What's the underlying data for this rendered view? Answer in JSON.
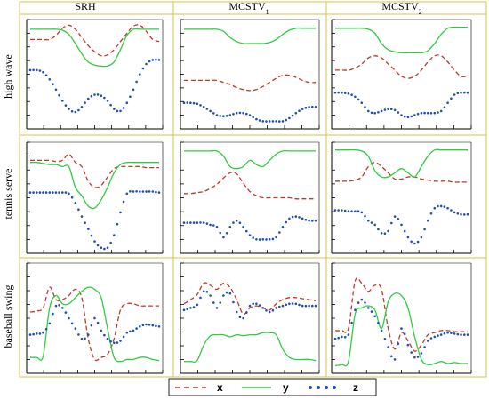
{
  "colors": {
    "grid_border": "#d9c34a",
    "axis": "#000000",
    "x": "#c0392b",
    "y": "#2ecc40",
    "z": "#1f4fb5"
  },
  "column_titles": [
    {
      "main": "SRH",
      "sub": ""
    },
    {
      "main": "MCSTV",
      "sub": "1"
    },
    {
      "main": "MCSTV",
      "sub": "2"
    }
  ],
  "row_titles": [
    "high wave",
    "tennis serve",
    "baseball swing"
  ],
  "legend": [
    {
      "label": "x",
      "style": "dashed",
      "color_key": "x"
    },
    {
      "label": "y",
      "style": "solid",
      "color_key": "y"
    },
    {
      "label": "z",
      "style": "dotted",
      "color_key": "z"
    }
  ],
  "chart_data": [
    {
      "type": "line",
      "row": "high wave",
      "column": "SRH",
      "ylim": [
        0,
        1
      ],
      "series": [
        {
          "name": "x",
          "values": [
            0.84,
            0.84,
            0.84,
            0.84,
            0.88,
            0.95,
            0.98,
            0.94,
            0.86,
            0.78,
            0.72,
            0.68,
            0.69,
            0.74,
            0.82,
            0.9,
            0.97,
            0.98,
            0.92,
            0.84,
            0.82
          ]
        },
        {
          "name": "y",
          "values": [
            0.94,
            0.94,
            0.94,
            0.94,
            0.94,
            0.93,
            0.89,
            0.8,
            0.7,
            0.62,
            0.59,
            0.58,
            0.58,
            0.62,
            0.74,
            0.88,
            0.94,
            0.94,
            0.94,
            0.94,
            0.94
          ]
        },
        {
          "name": "z",
          "values": [
            0.54,
            0.54,
            0.52,
            0.45,
            0.35,
            0.24,
            0.16,
            0.13,
            0.18,
            0.26,
            0.3,
            0.29,
            0.24,
            0.16,
            0.14,
            0.22,
            0.35,
            0.5,
            0.6,
            0.64,
            0.64
          ]
        }
      ]
    },
    {
      "type": "line",
      "row": "high wave",
      "column": "MCSTV1",
      "ylim": [
        0,
        1
      ],
      "series": [
        {
          "name": "x",
          "values": [
            0.44,
            0.44,
            0.44,
            0.44,
            0.44,
            0.44,
            0.42,
            0.4,
            0.37,
            0.35,
            0.34,
            0.35,
            0.38,
            0.42,
            0.46,
            0.49,
            0.49,
            0.47,
            0.44,
            0.42,
            0.42
          ]
        },
        {
          "name": "y",
          "values": [
            0.94,
            0.94,
            0.94,
            0.94,
            0.94,
            0.94,
            0.92,
            0.86,
            0.82,
            0.8,
            0.8,
            0.8,
            0.8,
            0.81,
            0.84,
            0.89,
            0.93,
            0.95,
            0.95,
            0.95,
            0.95
          ]
        },
        {
          "name": "z",
          "values": [
            0.22,
            0.22,
            0.21,
            0.18,
            0.14,
            0.1,
            0.09,
            0.1,
            0.12,
            0.12,
            0.1,
            0.06,
            0.04,
            0.04,
            0.04,
            0.04,
            0.07,
            0.12,
            0.16,
            0.18,
            0.18
          ]
        }
      ]
    },
    {
      "type": "line",
      "row": "high wave",
      "column": "MCSTV2",
      "ylim": [
        0,
        1
      ],
      "series": [
        {
          "name": "x",
          "values": [
            0.54,
            0.54,
            0.54,
            0.56,
            0.6,
            0.66,
            0.68,
            0.66,
            0.6,
            0.54,
            0.48,
            0.46,
            0.48,
            0.54,
            0.62,
            0.68,
            0.68,
            0.62,
            0.54,
            0.48,
            0.48
          ]
        },
        {
          "name": "y",
          "values": [
            0.95,
            0.95,
            0.95,
            0.95,
            0.95,
            0.94,
            0.9,
            0.8,
            0.74,
            0.72,
            0.71,
            0.71,
            0.71,
            0.71,
            0.73,
            0.8,
            0.89,
            0.95,
            0.96,
            0.96,
            0.96
          ]
        },
        {
          "name": "z",
          "values": [
            0.32,
            0.32,
            0.31,
            0.28,
            0.22,
            0.14,
            0.12,
            0.14,
            0.16,
            0.15,
            0.1,
            0.08,
            0.1,
            0.12,
            0.12,
            0.12,
            0.14,
            0.22,
            0.3,
            0.32,
            0.32
          ]
        }
      ]
    },
    {
      "type": "line",
      "row": "tennis serve",
      "column": "SRH",
      "ylim": [
        0,
        1
      ],
      "series": [
        {
          "name": "x",
          "values": [
            0.86,
            0.86,
            0.86,
            0.86,
            0.85,
            0.86,
            0.92,
            0.84,
            0.8,
            0.66,
            0.6,
            0.62,
            0.7,
            0.78,
            0.8,
            0.8,
            0.8,
            0.8,
            0.79,
            0.79,
            0.79
          ]
        },
        {
          "name": "y",
          "values": [
            0.84,
            0.84,
            0.83,
            0.82,
            0.82,
            0.8,
            0.8,
            0.6,
            0.52,
            0.42,
            0.4,
            0.48,
            0.6,
            0.74,
            0.82,
            0.84,
            0.84,
            0.84,
            0.84,
            0.84,
            0.84
          ]
        },
        {
          "name": "z",
          "values": [
            0.55,
            0.55,
            0.55,
            0.55,
            0.55,
            0.55,
            0.54,
            0.45,
            0.32,
            0.2,
            0.08,
            0.02,
            0.02,
            0.14,
            0.36,
            0.54,
            0.56,
            0.56,
            0.56,
            0.56,
            0.55
          ]
        }
      ]
    },
    {
      "type": "line",
      "row": "tennis serve",
      "column": "MCSTV1",
      "ylim": [
        0,
        1
      ],
      "series": [
        {
          "name": "x",
          "values": [
            0.54,
            0.54,
            0.55,
            0.56,
            0.59,
            0.63,
            0.69,
            0.74,
            0.73,
            0.64,
            0.56,
            0.52,
            0.5,
            0.5,
            0.5,
            0.5,
            0.5,
            0.49,
            0.49,
            0.49,
            0.49
          ]
        },
        {
          "name": "y",
          "values": [
            0.95,
            0.95,
            0.95,
            0.95,
            0.95,
            0.95,
            0.9,
            0.8,
            0.78,
            0.8,
            0.86,
            0.82,
            0.8,
            0.86,
            0.92,
            0.95,
            0.95,
            0.95,
            0.95,
            0.95,
            0.95
          ]
        },
        {
          "name": "z",
          "values": [
            0.26,
            0.26,
            0.26,
            0.26,
            0.24,
            0.22,
            0.12,
            0.22,
            0.28,
            0.22,
            0.14,
            0.1,
            0.1,
            0.1,
            0.12,
            0.22,
            0.3,
            0.32,
            0.3,
            0.28,
            0.28
          ]
        }
      ]
    },
    {
      "type": "line",
      "row": "tennis serve",
      "column": "MCSTV2",
      "ylim": [
        0,
        1
      ],
      "series": [
        {
          "name": "x",
          "values": [
            0.66,
            0.66,
            0.66,
            0.67,
            0.7,
            0.8,
            0.84,
            0.8,
            0.74,
            0.68,
            0.68,
            0.7,
            0.7,
            0.68,
            0.67,
            0.66,
            0.66,
            0.66,
            0.65,
            0.65,
            0.65
          ]
        },
        {
          "name": "y",
          "values": [
            0.96,
            0.96,
            0.96,
            0.96,
            0.95,
            0.9,
            0.76,
            0.7,
            0.7,
            0.74,
            0.78,
            0.74,
            0.7,
            0.8,
            0.9,
            0.96,
            0.96,
            0.96,
            0.96,
            0.96,
            0.96
          ]
        },
        {
          "name": "z",
          "values": [
            0.38,
            0.38,
            0.37,
            0.37,
            0.36,
            0.28,
            0.24,
            0.16,
            0.18,
            0.32,
            0.24,
            0.12,
            0.06,
            0.12,
            0.28,
            0.4,
            0.42,
            0.4,
            0.36,
            0.34,
            0.34
          ]
        }
      ]
    },
    {
      "type": "line",
      "row": "baseball swing",
      "column": "SRH",
      "ylim": [
        0,
        1
      ],
      "series": [
        {
          "name": "x",
          "values": [
            0.56,
            0.57,
            0.6,
            0.8,
            0.68,
            0.68,
            0.72,
            0.78,
            0.7,
            0.3,
            0.1,
            0.12,
            0.15,
            0.3,
            0.58,
            0.64,
            0.64,
            0.62,
            0.62,
            0.62,
            0.62
          ]
        },
        {
          "name": "y",
          "values": [
            0.12,
            0.12,
            0.13,
            0.6,
            0.72,
            0.64,
            0.64,
            0.7,
            0.76,
            0.8,
            0.78,
            0.7,
            0.4,
            0.12,
            0.08,
            0.1,
            0.1,
            0.12,
            0.12,
            0.1,
            0.09
          ]
        },
        {
          "name": "z",
          "values": [
            0.34,
            0.35,
            0.36,
            0.45,
            0.62,
            0.6,
            0.5,
            0.4,
            0.3,
            0.34,
            0.5,
            0.38,
            0.3,
            0.26,
            0.28,
            0.36,
            0.38,
            0.42,
            0.44,
            0.43,
            0.42
          ]
        }
      ]
    },
    {
      "type": "line",
      "row": "baseball swing",
      "column": "MCSTV1",
      "ylim": [
        0,
        1
      ],
      "series": [
        {
          "name": "x",
          "values": [
            0.64,
            0.68,
            0.73,
            0.84,
            0.82,
            0.78,
            0.84,
            0.8,
            0.68,
            0.54,
            0.6,
            0.62,
            0.6,
            0.58,
            0.64,
            0.68,
            0.7,
            0.7,
            0.69,
            0.68,
            0.67
          ]
        },
        {
          "name": "y",
          "values": [
            0.08,
            0.08,
            0.09,
            0.24,
            0.33,
            0.34,
            0.34,
            0.32,
            0.34,
            0.33,
            0.34,
            0.34,
            0.36,
            0.36,
            0.34,
            0.2,
            0.12,
            0.1,
            0.1,
            0.1,
            0.09
          ]
        },
        {
          "name": "z",
          "values": [
            0.58,
            0.6,
            0.63,
            0.76,
            0.72,
            0.6,
            0.72,
            0.74,
            0.56,
            0.5,
            0.62,
            0.64,
            0.6,
            0.56,
            0.6,
            0.62,
            0.64,
            0.64,
            0.62,
            0.62,
            0.62
          ]
        }
      ]
    },
    {
      "type": "line",
      "row": "baseball swing",
      "column": "MCSTV2",
      "ylim": [
        0,
        1
      ],
      "series": [
        {
          "name": "x",
          "values": [
            0.38,
            0.38,
            0.4,
            0.86,
            0.84,
            0.76,
            0.82,
            0.78,
            0.4,
            0.2,
            0.36,
            0.28,
            0.18,
            0.24,
            0.34,
            0.36,
            0.38,
            0.38,
            0.37,
            0.37,
            0.37
          ]
        },
        {
          "name": "y",
          "values": [
            0.04,
            0.05,
            0.08,
            0.54,
            0.6,
            0.62,
            0.58,
            0.4,
            0.66,
            0.74,
            0.72,
            0.6,
            0.32,
            0.1,
            0.05,
            0.06,
            0.08,
            0.06,
            0.07,
            0.06,
            0.06
          ]
        },
        {
          "name": "z",
          "values": [
            0.3,
            0.32,
            0.34,
            0.58,
            0.68,
            0.6,
            0.52,
            0.38,
            0.22,
            0.1,
            0.4,
            0.24,
            0.12,
            0.16,
            0.28,
            0.32,
            0.34,
            0.36,
            0.35,
            0.34,
            0.34
          ]
        }
      ]
    }
  ]
}
